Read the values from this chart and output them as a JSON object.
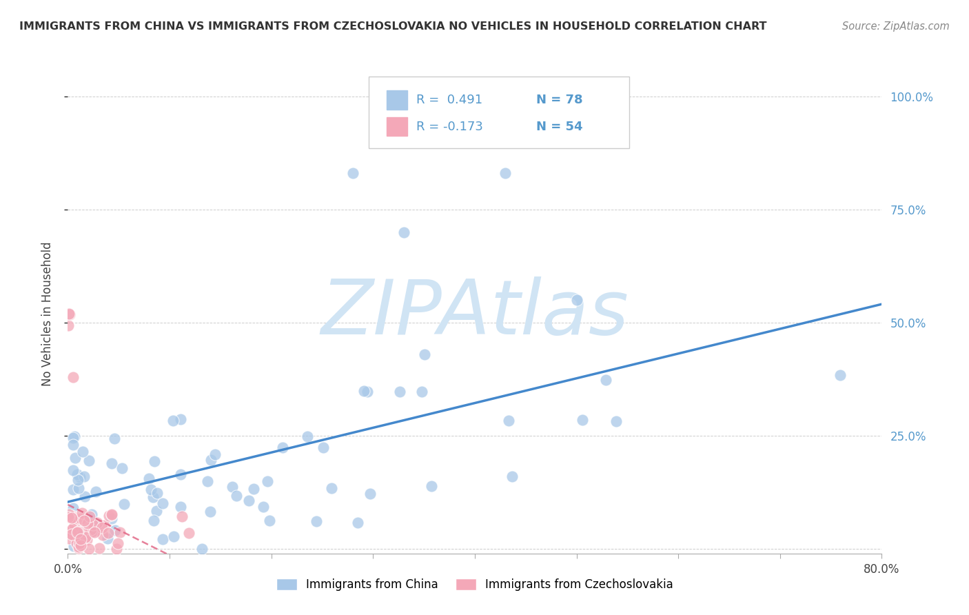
{
  "title": "IMMIGRANTS FROM CHINA VS IMMIGRANTS FROM CZECHOSLOVAKIA NO VEHICLES IN HOUSEHOLD CORRELATION CHART",
  "source": "Source: ZipAtlas.com",
  "ylabel": "No Vehicles in Household",
  "xlim": [
    0.0,
    0.8
  ],
  "ylim": [
    -0.01,
    1.05
  ],
  "legend1_r": "R =  0.491",
  "legend1_n": "N = 78",
  "legend2_r": "R = -0.173",
  "legend2_n": "N = 54",
  "china_color": "#a8c8e8",
  "czech_color": "#f4a8b8",
  "china_line_color": "#4488cc",
  "czech_line_color": "#e06080",
  "watermark": "ZIPAtlas",
  "watermark_color": "#d0e4f4",
  "ytick_vals": [
    0.0,
    0.25,
    0.5,
    0.75,
    1.0
  ],
  "ytick_labels": [
    "",
    "25.0%",
    "50.0%",
    "75.0%",
    "100.0%"
  ],
  "xtick_vals": [
    0.0,
    0.1,
    0.2,
    0.3,
    0.4,
    0.5,
    0.6,
    0.7,
    0.8
  ],
  "N_china": 78,
  "N_czech": 54,
  "china_seed": 12,
  "czech_seed": 7
}
